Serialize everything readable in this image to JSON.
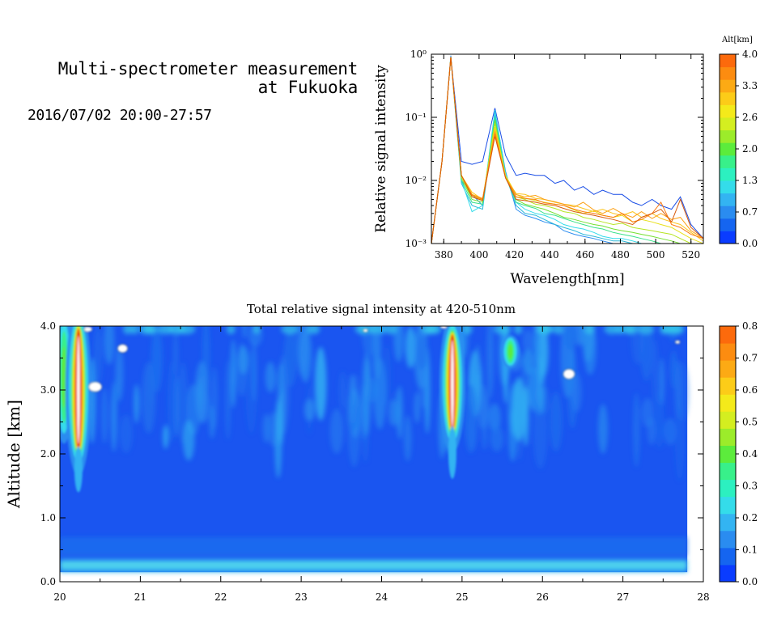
{
  "header": {
    "title_line1": "Multi-spectrometer measurement",
    "title_line2": "at Fukuoka",
    "datetime": "2016/07/02 20:00-27:57"
  },
  "colors": {
    "scale": [
      "#0a3cff",
      "#1565f0",
      "#2a8cf0",
      "#33b4f2",
      "#34dcea",
      "#2cf0c0",
      "#38f08a",
      "#5cec3c",
      "#9cec2a",
      "#d4ee20",
      "#f4ea1a",
      "#fccc18",
      "#fcaa14",
      "#fc8c10",
      "#fc6a0c"
    ],
    "hot": "#e01010",
    "background_field": "#1a55f0"
  },
  "chart_data": [
    {
      "type": "line",
      "xlabel": "Wavelength[nm]",
      "ylabel": "Relative signal intensity",
      "yscale": "log",
      "xlim": [
        373,
        527
      ],
      "ylim": [
        0.001,
        1
      ],
      "xticks": [
        "380",
        "400",
        "420",
        "440",
        "460",
        "480",
        "500",
        "520"
      ],
      "yticks": [
        "10⁻³",
        "10⁻²",
        "10⁻¹",
        "10⁰"
      ],
      "x": [
        373,
        379,
        384,
        390,
        396,
        402,
        409,
        415,
        421,
        426,
        432,
        437,
        443,
        448,
        454,
        459,
        465,
        470,
        476,
        481,
        487,
        492,
        498,
        503,
        509,
        514,
        520,
        527
      ],
      "series": [
        {
          "color": "#1a4ee6",
          "values": [
            0.001,
            0.02,
            0.9,
            0.02,
            0.018,
            0.02,
            0.14,
            0.025,
            0.012,
            0.013,
            0.012,
            0.012,
            0.009,
            0.01,
            0.007,
            0.008,
            0.006,
            0.007,
            0.006,
            0.006,
            0.0045,
            0.004,
            0.005,
            0.004,
            0.0035,
            0.0055,
            0.002,
            0.0012
          ]
        },
        {
          "color": "#2a8cf0",
          "values": [
            0.001,
            0.02,
            0.95,
            0.01,
            0.006,
            0.004,
            0.12,
            0.014,
            0.0035,
            0.0028,
            0.0025,
            0.0022,
            0.002,
            0.0016,
            0.0014,
            0.0013,
            0.0012,
            0.0011,
            0.001,
            0.001,
            0.001,
            0.001,
            0.001,
            0.001,
            0.001,
            0.001,
            0.001,
            0.001
          ]
        },
        {
          "color": "#2ab8d8",
          "values": [
            0.001,
            0.02,
            0.9,
            0.009,
            0.004,
            0.0035,
            0.11,
            0.012,
            0.004,
            0.003,
            0.0028,
            0.0024,
            0.002,
            0.0018,
            0.0016,
            0.0014,
            0.0013,
            0.0012,
            0.0011,
            0.0011,
            0.001,
            0.001,
            0.001,
            0.001,
            0.001,
            0.001,
            0.001,
            0.001
          ]
        },
        {
          "color": "#34dcea",
          "values": [
            0.001,
            0.02,
            0.9,
            0.01,
            0.0032,
            0.004,
            0.13,
            0.013,
            0.0045,
            0.0035,
            0.003,
            0.0028,
            0.0024,
            0.002,
            0.0018,
            0.0017,
            0.0015,
            0.0013,
            0.0012,
            0.0012,
            0.0011,
            0.001,
            0.001,
            0.001,
            0.001,
            0.001,
            0.001,
            0.001
          ]
        },
        {
          "color": "#38e28a",
          "values": [
            0.001,
            0.02,
            0.9,
            0.01,
            0.0045,
            0.0042,
            0.1,
            0.012,
            0.0045,
            0.004,
            0.0036,
            0.003,
            0.0028,
            0.0025,
            0.0022,
            0.002,
            0.0018,
            0.0017,
            0.0015,
            0.0014,
            0.0013,
            0.0012,
            0.0011,
            0.001,
            0.001,
            0.001,
            0.001,
            0.001
          ]
        },
        {
          "color": "#74e030",
          "values": [
            0.001,
            0.02,
            0.9,
            0.011,
            0.005,
            0.0045,
            0.09,
            0.011,
            0.005,
            0.0042,
            0.0038,
            0.0035,
            0.003,
            0.0026,
            0.0024,
            0.0022,
            0.002,
            0.0019,
            0.0017,
            0.0016,
            0.0015,
            0.0014,
            0.0013,
            0.0012,
            0.0011,
            0.001,
            0.001,
            0.001
          ]
        },
        {
          "color": "#b6e422",
          "values": [
            0.001,
            0.02,
            0.9,
            0.011,
            0.0055,
            0.005,
            0.08,
            0.012,
            0.0055,
            0.005,
            0.0042,
            0.004,
            0.0036,
            0.0032,
            0.003,
            0.0026,
            0.0024,
            0.0022,
            0.002,
            0.0021,
            0.0018,
            0.0017,
            0.0016,
            0.0015,
            0.0014,
            0.0012,
            0.001,
            0.001
          ]
        },
        {
          "color": "#e8e01a",
          "values": [
            0.001,
            0.02,
            0.9,
            0.012,
            0.006,
            0.0048,
            0.07,
            0.012,
            0.006,
            0.0052,
            0.0048,
            0.0045,
            0.0042,
            0.004,
            0.0034,
            0.003,
            0.0033,
            0.0028,
            0.0026,
            0.0028,
            0.0022,
            0.0024,
            0.0022,
            0.002,
            0.0018,
            0.0015,
            0.0012,
            0.001
          ]
        },
        {
          "color": "#fcc41a",
          "values": [
            0.001,
            0.02,
            0.9,
            0.012,
            0.0065,
            0.005,
            0.065,
            0.011,
            0.0062,
            0.006,
            0.0052,
            0.005,
            0.0045,
            0.0042,
            0.004,
            0.0036,
            0.0032,
            0.0035,
            0.003,
            0.0028,
            0.0032,
            0.0026,
            0.003,
            0.0025,
            0.0022,
            0.002,
            0.0015,
            0.0011
          ]
        },
        {
          "color": "#fca014",
          "values": [
            0.001,
            0.02,
            0.9,
            0.012,
            0.006,
            0.0052,
            0.06,
            0.011,
            0.006,
            0.0055,
            0.0058,
            0.005,
            0.0046,
            0.0042,
            0.0038,
            0.0045,
            0.0034,
            0.003,
            0.0036,
            0.003,
            0.0026,
            0.0032,
            0.0025,
            0.003,
            0.0024,
            0.0026,
            0.0016,
            0.0012
          ]
        },
        {
          "color": "#fc7a10",
          "values": [
            0.001,
            0.02,
            0.9,
            0.012,
            0.0058,
            0.005,
            0.055,
            0.011,
            0.0055,
            0.0052,
            0.005,
            0.0044,
            0.0042,
            0.004,
            0.0035,
            0.0032,
            0.003,
            0.0028,
            0.0026,
            0.003,
            0.0022,
            0.0024,
            0.003,
            0.0045,
            0.002,
            0.0018,
            0.0014,
            0.0012
          ]
        },
        {
          "color": "#d85a0a",
          "values": [
            0.001,
            0.02,
            0.9,
            0.012,
            0.0055,
            0.0048,
            0.05,
            0.011,
            0.005,
            0.0048,
            0.0045,
            0.0042,
            0.004,
            0.0036,
            0.0032,
            0.003,
            0.0028,
            0.0026,
            0.0024,
            0.0022,
            0.002,
            0.0026,
            0.003,
            0.0035,
            0.0022,
            0.005,
            0.0018,
            0.0012
          ]
        }
      ]
    },
    {
      "type": "heatmap",
      "title": "Total relative signal intensity at 420-510nm",
      "xlabel": "",
      "ylabel": "Altitude [km]",
      "xlim": [
        20,
        28
      ],
      "ylim": [
        0,
        4
      ],
      "xticks": [
        "20",
        "21",
        "22",
        "23",
        "24",
        "25",
        "26",
        "27",
        "28"
      ],
      "yticks": [
        "0.0",
        "1.0",
        "2.0",
        "3.0",
        "4.0"
      ],
      "data_x_range": [
        20,
        27.8
      ],
      "data_y_range": [
        0.15,
        4.0
      ],
      "features": [
        {
          "t": 20.05,
          "alt_min": 2.4,
          "alt_max": 4.0,
          "peak": 0.35
        },
        {
          "t": 20.23,
          "alt_min": 2.0,
          "alt_max": 4.0,
          "peak": 0.8
        },
        {
          "t": 24.88,
          "alt_min": 2.3,
          "alt_max": 3.9,
          "peak": 0.8
        },
        {
          "t": 25.6,
          "alt_min": 3.4,
          "alt_max": 3.8,
          "peak": 0.35
        }
      ]
    },
    {
      "type": "colorbar",
      "label": "Alt[km]",
      "range": [
        0,
        4
      ],
      "ticks": [
        "0.0",
        "0.7",
        "1.3",
        "2.0",
        "2.6",
        "3.3",
        "4.0"
      ]
    },
    {
      "type": "colorbar",
      "label": "",
      "range": [
        0,
        0.8
      ],
      "ticks": [
        "0.0",
        "0.1",
        "0.2",
        "0.3",
        "0.4",
        "0.5",
        "0.6",
        "0.7",
        "0.8"
      ]
    }
  ]
}
